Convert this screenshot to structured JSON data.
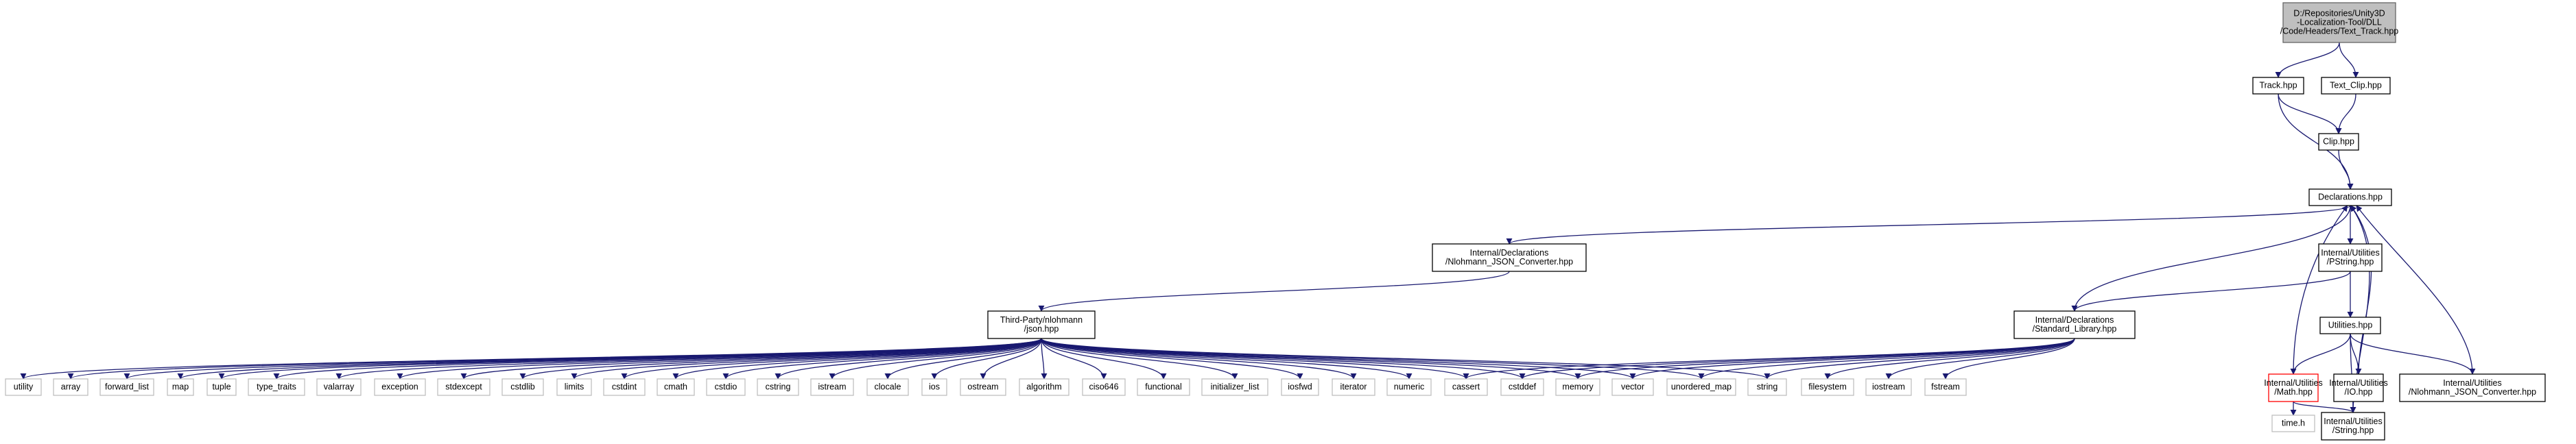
{
  "colors": {
    "edge": "#191970",
    "node_border": "#000000",
    "node_fill": "#ffffff",
    "root_fill": "#bfbfbf",
    "root_border": "#666666",
    "missing_border": "#ff0000",
    "external_border": "#bfbfbf",
    "external_text": "#555555"
  },
  "nodes": [
    {
      "id": "root",
      "kind": "root",
      "lines": [
        "D:/Repositories/Unity3D",
        "-Localization-Tool/DLL",
        "/Code/Headers/Text_Track.hpp"
      ]
    },
    {
      "id": "track",
      "kind": "normal",
      "lines": [
        "Track.hpp"
      ]
    },
    {
      "id": "textclip",
      "kind": "normal",
      "lines": [
        "Text_Clip.hpp"
      ]
    },
    {
      "id": "clip",
      "kind": "normal",
      "lines": [
        "Clip.hpp"
      ]
    },
    {
      "id": "declarations",
      "kind": "normal",
      "lines": [
        "Declarations.hpp"
      ]
    },
    {
      "id": "nlconv_decl",
      "kind": "normal",
      "lines": [
        "Internal/Declarations",
        "/Nlohmann_JSON_Converter.hpp"
      ]
    },
    {
      "id": "pstring",
      "kind": "normal",
      "lines": [
        "Internal/Utilities",
        "/PString.hpp"
      ]
    },
    {
      "id": "json",
      "kind": "normal",
      "lines": [
        "Third-Party/nlohmann",
        "/json.hpp"
      ]
    },
    {
      "id": "stdlib",
      "kind": "normal",
      "lines": [
        "Internal/Declarations",
        "/Standard_Library.hpp"
      ]
    },
    {
      "id": "utilities",
      "kind": "normal",
      "lines": [
        "Utilities.hpp"
      ]
    },
    {
      "id": "math",
      "kind": "missing",
      "lines": [
        "Internal/Utilities",
        "/Math.hpp"
      ]
    },
    {
      "id": "io",
      "kind": "normal",
      "lines": [
        "Internal/Utilities",
        "/IO.hpp"
      ]
    },
    {
      "id": "nlconv_util",
      "kind": "normal",
      "lines": [
        "Internal/Utilities",
        "/Nlohmann_JSON_Converter.hpp"
      ]
    },
    {
      "id": "timeh",
      "kind": "external",
      "lines": [
        "time.h"
      ]
    },
    {
      "id": "string_util",
      "kind": "normal",
      "lines": [
        "Internal/Utilities",
        "/String.hpp"
      ]
    },
    {
      "id": "utility",
      "kind": "external",
      "lines": [
        "utility"
      ]
    },
    {
      "id": "array",
      "kind": "external",
      "lines": [
        "array"
      ]
    },
    {
      "id": "forward_list",
      "kind": "external",
      "lines": [
        "forward_list"
      ]
    },
    {
      "id": "map",
      "kind": "external",
      "lines": [
        "map"
      ]
    },
    {
      "id": "tuple",
      "kind": "external",
      "lines": [
        "tuple"
      ]
    },
    {
      "id": "type_traits",
      "kind": "external",
      "lines": [
        "type_traits"
      ]
    },
    {
      "id": "valarray",
      "kind": "external",
      "lines": [
        "valarray"
      ]
    },
    {
      "id": "exception",
      "kind": "external",
      "lines": [
        "exception"
      ]
    },
    {
      "id": "stdexcept",
      "kind": "external",
      "lines": [
        "stdexcept"
      ]
    },
    {
      "id": "cstdlib",
      "kind": "external",
      "lines": [
        "cstdlib"
      ]
    },
    {
      "id": "limits",
      "kind": "external",
      "lines": [
        "limits"
      ]
    },
    {
      "id": "cstdint",
      "kind": "external",
      "lines": [
        "cstdint"
      ]
    },
    {
      "id": "cmath",
      "kind": "external",
      "lines": [
        "cmath"
      ]
    },
    {
      "id": "cstdio",
      "kind": "external",
      "lines": [
        "cstdio"
      ]
    },
    {
      "id": "cstring",
      "kind": "external",
      "lines": [
        "cstring"
      ]
    },
    {
      "id": "istream",
      "kind": "external",
      "lines": [
        "istream"
      ]
    },
    {
      "id": "clocale",
      "kind": "external",
      "lines": [
        "clocale"
      ]
    },
    {
      "id": "ios",
      "kind": "external",
      "lines": [
        "ios"
      ]
    },
    {
      "id": "ostream",
      "kind": "external",
      "lines": [
        "ostream"
      ]
    },
    {
      "id": "algorithm",
      "kind": "external",
      "lines": [
        "algorithm"
      ]
    },
    {
      "id": "ciso646",
      "kind": "external",
      "lines": [
        "ciso646"
      ]
    },
    {
      "id": "functional",
      "kind": "external",
      "lines": [
        "functional"
      ]
    },
    {
      "id": "initializer_list",
      "kind": "external",
      "lines": [
        "initializer_list"
      ]
    },
    {
      "id": "iosfwd",
      "kind": "external",
      "lines": [
        "iosfwd"
      ]
    },
    {
      "id": "iterator",
      "kind": "external",
      "lines": [
        "iterator"
      ]
    },
    {
      "id": "numeric",
      "kind": "external",
      "lines": [
        "numeric"
      ]
    },
    {
      "id": "cassert",
      "kind": "external",
      "lines": [
        "cassert"
      ]
    },
    {
      "id": "cstddef",
      "kind": "external",
      "lines": [
        "cstddef"
      ]
    },
    {
      "id": "memory",
      "kind": "external",
      "lines": [
        "memory"
      ]
    },
    {
      "id": "vector",
      "kind": "external",
      "lines": [
        "vector"
      ]
    },
    {
      "id": "unordered_map",
      "kind": "external",
      "lines": [
        "unordered_map"
      ]
    },
    {
      "id": "string",
      "kind": "external",
      "lines": [
        "string"
      ]
    },
    {
      "id": "filesystem",
      "kind": "external",
      "lines": [
        "filesystem"
      ]
    },
    {
      "id": "iostream",
      "kind": "external",
      "lines": [
        "iostream"
      ]
    },
    {
      "id": "fstream",
      "kind": "external",
      "lines": [
        "fstream"
      ]
    }
  ],
  "edges": [
    [
      "root",
      "track"
    ],
    [
      "root",
      "textclip"
    ],
    [
      "track",
      "clip"
    ],
    [
      "track",
      "declarations"
    ],
    [
      "textclip",
      "clip"
    ],
    [
      "clip",
      "declarations"
    ],
    [
      "declarations",
      "nlconv_decl"
    ],
    [
      "declarations",
      "pstring"
    ],
    [
      "declarations",
      "stdlib"
    ],
    [
      "nlconv_decl",
      "json"
    ],
    [
      "pstring",
      "stdlib"
    ],
    [
      "pstring",
      "utilities"
    ],
    [
      "utilities",
      "math"
    ],
    [
      "utilities",
      "io"
    ],
    [
      "utilities",
      "nlconv_util"
    ],
    [
      "utilities",
      "string_util"
    ],
    [
      "math",
      "declarations"
    ],
    [
      "math",
      "timeh"
    ],
    [
      "math",
      "string_util"
    ],
    [
      "io",
      "declarations"
    ],
    [
      "nlconv_util",
      "declarations"
    ],
    [
      "string_util",
      "declarations"
    ],
    [
      "json",
      "utility"
    ],
    [
      "json",
      "array"
    ],
    [
      "json",
      "forward_list"
    ],
    [
      "json",
      "map"
    ],
    [
      "json",
      "tuple"
    ],
    [
      "json",
      "type_traits"
    ],
    [
      "json",
      "valarray"
    ],
    [
      "json",
      "exception"
    ],
    [
      "json",
      "stdexcept"
    ],
    [
      "json",
      "cstdlib"
    ],
    [
      "json",
      "limits"
    ],
    [
      "json",
      "cstdint"
    ],
    [
      "json",
      "cmath"
    ],
    [
      "json",
      "cstdio"
    ],
    [
      "json",
      "cstring"
    ],
    [
      "json",
      "istream"
    ],
    [
      "json",
      "clocale"
    ],
    [
      "json",
      "ios"
    ],
    [
      "json",
      "ostream"
    ],
    [
      "json",
      "algorithm"
    ],
    [
      "json",
      "ciso646"
    ],
    [
      "json",
      "functional"
    ],
    [
      "json",
      "initializer_list"
    ],
    [
      "json",
      "iosfwd"
    ],
    [
      "json",
      "iterator"
    ],
    [
      "json",
      "numeric"
    ],
    [
      "json",
      "cassert"
    ],
    [
      "json",
      "cstddef"
    ],
    [
      "json",
      "memory"
    ],
    [
      "json",
      "vector"
    ],
    [
      "json",
      "unordered_map"
    ],
    [
      "json",
      "string"
    ],
    [
      "stdlib",
      "cassert"
    ],
    [
      "stdlib",
      "cstddef"
    ],
    [
      "stdlib",
      "memory"
    ],
    [
      "stdlib",
      "vector"
    ],
    [
      "stdlib",
      "unordered_map"
    ],
    [
      "stdlib",
      "string"
    ],
    [
      "stdlib",
      "filesystem"
    ],
    [
      "stdlib",
      "iostream"
    ],
    [
      "stdlib",
      "fstream"
    ]
  ]
}
